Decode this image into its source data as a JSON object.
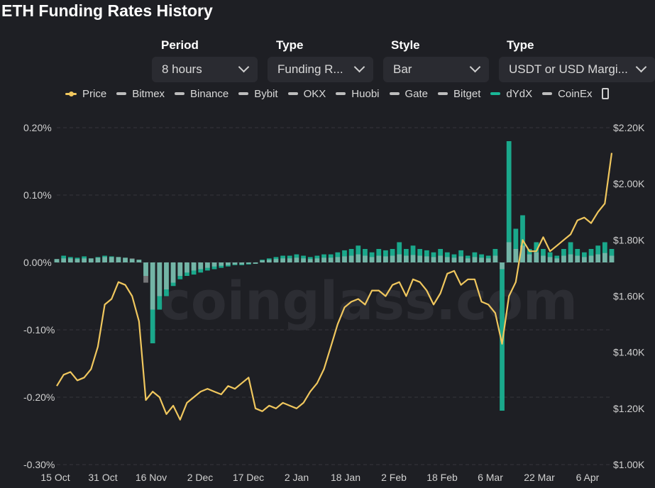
{
  "page": {
    "title": "ETH Funding Rates History"
  },
  "controls": [
    {
      "label": "Period",
      "value": "8 hours"
    },
    {
      "label": "Type",
      "value": "Funding R..."
    },
    {
      "label": "Style",
      "value": "Bar"
    },
    {
      "label": "Type",
      "value": "USDT or USD Margi..."
    }
  ],
  "legend": [
    {
      "name": "Price",
      "color": "#f0c75e"
    },
    {
      "name": "Bitmex",
      "color": "#bdbdbd"
    },
    {
      "name": "Binance",
      "color": "#bdbdbd"
    },
    {
      "name": "Bybit",
      "color": "#bdbdbd"
    },
    {
      "name": "OKX",
      "color": "#bdbdbd"
    },
    {
      "name": "Huobi",
      "color": "#bdbdbd"
    },
    {
      "name": "Gate",
      "color": "#bdbdbd"
    },
    {
      "name": "Bitget",
      "color": "#bdbdbd"
    },
    {
      "name": "dYdX",
      "color": "#19b797"
    },
    {
      "name": "CoinEx",
      "color": "#bdbdbd"
    }
  ],
  "watermark": "coinglass.com",
  "chart_data": {
    "type": "bar",
    "title": "ETH Funding Rates History",
    "grid": true,
    "legend_position": "top",
    "x_tick_labels": [
      "15 Oct",
      "31 Oct",
      "16 Nov",
      "2 Dec",
      "17 Dec",
      "2 Jan",
      "18 Jan",
      "2 Feb",
      "18 Feb",
      "6 Mar",
      "22 Mar",
      "6 Apr"
    ],
    "y_left_ticks": [
      "0.20%",
      "0.10%",
      "0.00%",
      "-0.10%",
      "-0.20%",
      "-0.30%"
    ],
    "y_left_range": [
      -0.3,
      0.2
    ],
    "y_right_ticks": [
      "$2.20K",
      "$2.00K",
      "$1.80K",
      "$1.60K",
      "$1.40K",
      "$1.20K",
      "$1.00K"
    ],
    "y_right_range": [
      1000,
      2200
    ],
    "series": [
      {
        "name": "Price",
        "type": "line",
        "axis": "right",
        "color": "#f0c75e",
        "points": [
          [
            0,
            1280
          ],
          [
            1,
            1320
          ],
          [
            2,
            1330
          ],
          [
            3,
            1300
          ],
          [
            4,
            1310
          ],
          [
            5,
            1340
          ],
          [
            6,
            1420
          ],
          [
            7,
            1570
          ],
          [
            8,
            1590
          ],
          [
            9,
            1650
          ],
          [
            10,
            1640
          ],
          [
            11,
            1600
          ],
          [
            12,
            1510
          ],
          [
            13,
            1230
          ],
          [
            14,
            1260
          ],
          [
            15,
            1240
          ],
          [
            16,
            1180
          ],
          [
            17,
            1210
          ],
          [
            18,
            1160
          ],
          [
            19,
            1220
          ],
          [
            20,
            1240
          ],
          [
            21,
            1260
          ],
          [
            22,
            1270
          ],
          [
            23,
            1260
          ],
          [
            24,
            1250
          ],
          [
            25,
            1280
          ],
          [
            26,
            1270
          ],
          [
            27,
            1290
          ],
          [
            28,
            1310
          ],
          [
            29,
            1200
          ],
          [
            30,
            1190
          ],
          [
            31,
            1210
          ],
          [
            32,
            1200
          ],
          [
            33,
            1220
          ],
          [
            34,
            1210
          ],
          [
            35,
            1200
          ],
          [
            36,
            1220
          ],
          [
            37,
            1260
          ],
          [
            38,
            1290
          ],
          [
            39,
            1340
          ],
          [
            40,
            1420
          ],
          [
            41,
            1500
          ],
          [
            42,
            1560
          ],
          [
            43,
            1580
          ],
          [
            44,
            1590
          ],
          [
            45,
            1570
          ],
          [
            46,
            1620
          ],
          [
            47,
            1620
          ],
          [
            48,
            1600
          ],
          [
            49,
            1640
          ],
          [
            50,
            1650
          ],
          [
            51,
            1600
          ],
          [
            52,
            1660
          ],
          [
            53,
            1650
          ],
          [
            54,
            1620
          ],
          [
            55,
            1570
          ],
          [
            56,
            1610
          ],
          [
            57,
            1680
          ],
          [
            58,
            1690
          ],
          [
            59,
            1640
          ],
          [
            60,
            1660
          ],
          [
            61,
            1660
          ],
          [
            62,
            1580
          ],
          [
            63,
            1570
          ],
          [
            64,
            1540
          ],
          [
            65,
            1430
          ],
          [
            66,
            1600
          ],
          [
            67,
            1650
          ],
          [
            68,
            1800
          ],
          [
            69,
            1760
          ],
          [
            70,
            1760
          ],
          [
            71,
            1810
          ],
          [
            72,
            1760
          ],
          [
            73,
            1780
          ],
          [
            74,
            1800
          ],
          [
            75,
            1820
          ],
          [
            76,
            1870
          ],
          [
            77,
            1880
          ],
          [
            78,
            1860
          ],
          [
            79,
            1900
          ],
          [
            80,
            1930
          ],
          [
            81,
            2110
          ]
        ]
      },
      {
        "name": "dYdX",
        "type": "bar",
        "axis": "left",
        "color": "#19b797",
        "points": [
          [
            0,
            0.005
          ],
          [
            1,
            0.01
          ],
          [
            2,
            0.008
          ],
          [
            3,
            0.007
          ],
          [
            4,
            0.009
          ],
          [
            5,
            0.006
          ],
          [
            6,
            0.008
          ],
          [
            7,
            0.01
          ],
          [
            8,
            0.009
          ],
          [
            9,
            0.008
          ],
          [
            10,
            0.007
          ],
          [
            11,
            0.005
          ],
          [
            12,
            0.004
          ],
          [
            13,
            -0.02
          ],
          [
            14,
            -0.12
          ],
          [
            15,
            -0.07
          ],
          [
            16,
            -0.05
          ],
          [
            17,
            -0.035
          ],
          [
            18,
            -0.025
          ],
          [
            19,
            -0.02
          ],
          [
            20,
            -0.018
          ],
          [
            21,
            -0.015
          ],
          [
            22,
            -0.012
          ],
          [
            23,
            -0.01
          ],
          [
            24,
            -0.008
          ],
          [
            25,
            -0.006
          ],
          [
            26,
            -0.004
          ],
          [
            27,
            -0.004
          ],
          [
            28,
            -0.003
          ],
          [
            29,
            -0.002
          ],
          [
            30,
            0.004
          ],
          [
            31,
            0.006
          ],
          [
            32,
            0.008
          ],
          [
            33,
            0.01
          ],
          [
            34,
            0.01
          ],
          [
            35,
            0.012
          ],
          [
            36,
            0.01
          ],
          [
            37,
            0.008
          ],
          [
            38,
            0.01
          ],
          [
            39,
            0.012
          ],
          [
            40,
            0.012
          ],
          [
            41,
            0.015
          ],
          [
            42,
            0.018
          ],
          [
            43,
            0.02
          ],
          [
            44,
            0.025
          ],
          [
            45,
            0.02
          ],
          [
            46,
            0.015
          ],
          [
            47,
            0.02
          ],
          [
            48,
            0.018
          ],
          [
            49,
            0.02
          ],
          [
            50,
            0.03
          ],
          [
            51,
            0.02
          ],
          [
            52,
            0.025
          ],
          [
            53,
            0.02
          ],
          [
            54,
            0.018
          ],
          [
            55,
            0.015
          ],
          [
            56,
            0.02
          ],
          [
            57,
            0.015
          ],
          [
            58,
            0.012
          ],
          [
            59,
            0.018
          ],
          [
            60,
            0.01
          ],
          [
            61,
            0.015
          ],
          [
            62,
            0.012
          ],
          [
            63,
            0.01
          ],
          [
            64,
            0.02
          ],
          [
            65,
            -0.22
          ],
          [
            66,
            0.18
          ],
          [
            67,
            0.05
          ],
          [
            68,
            0.07
          ],
          [
            69,
            0.02
          ],
          [
            70,
            0.03
          ],
          [
            71,
            0.02
          ],
          [
            72,
            0.015
          ],
          [
            73,
            0.01
          ],
          [
            74,
            0.02
          ],
          [
            75,
            0.03
          ],
          [
            76,
            0.02
          ],
          [
            77,
            0.015
          ],
          [
            78,
            0.02
          ],
          [
            79,
            0.025
          ],
          [
            80,
            0.03
          ],
          [
            81,
            0.02
          ]
        ]
      },
      {
        "name": "Binance",
        "type": "bar",
        "axis": "left",
        "color": "#bdbdbd",
        "points": [
          [
            0,
            0.005
          ],
          [
            1,
            0.006
          ],
          [
            2,
            0.006
          ],
          [
            3,
            0.005
          ],
          [
            4,
            0.006
          ],
          [
            5,
            0.006
          ],
          [
            6,
            0.007
          ],
          [
            7,
            0.008
          ],
          [
            8,
            0.008
          ],
          [
            9,
            0.008
          ],
          [
            10,
            0.007
          ],
          [
            11,
            0.006
          ],
          [
            12,
            0.004
          ],
          [
            13,
            -0.03
          ],
          [
            14,
            -0.07
          ],
          [
            15,
            -0.05
          ],
          [
            16,
            -0.04
          ],
          [
            17,
            -0.03
          ],
          [
            18,
            -0.02
          ],
          [
            19,
            -0.015
          ],
          [
            20,
            -0.012
          ],
          [
            21,
            -0.01
          ],
          [
            22,
            -0.008
          ],
          [
            23,
            -0.006
          ],
          [
            24,
            -0.005
          ],
          [
            25,
            -0.004
          ],
          [
            26,
            -0.003
          ],
          [
            27,
            -0.003
          ],
          [
            28,
            -0.002
          ],
          [
            29,
            -0.002
          ],
          [
            30,
            0.003
          ],
          [
            31,
            0.004
          ],
          [
            32,
            0.005
          ],
          [
            33,
            0.006
          ],
          [
            34,
            0.006
          ],
          [
            35,
            0.007
          ],
          [
            36,
            0.006
          ],
          [
            37,
            0.005
          ],
          [
            38,
            0.006
          ],
          [
            39,
            0.007
          ],
          [
            40,
            0.007
          ],
          [
            41,
            0.008
          ],
          [
            42,
            0.009
          ],
          [
            43,
            0.01
          ],
          [
            44,
            0.012
          ],
          [
            45,
            0.01
          ],
          [
            46,
            0.008
          ],
          [
            47,
            0.01
          ],
          [
            48,
            0.009
          ],
          [
            49,
            0.01
          ],
          [
            50,
            0.012
          ],
          [
            51,
            0.01
          ],
          [
            52,
            0.011
          ],
          [
            53,
            0.01
          ],
          [
            54,
            0.009
          ],
          [
            55,
            0.008
          ],
          [
            56,
            0.01
          ],
          [
            57,
            0.008
          ],
          [
            58,
            0.007
          ],
          [
            59,
            0.009
          ],
          [
            60,
            0.006
          ],
          [
            61,
            0.008
          ],
          [
            62,
            0.007
          ],
          [
            63,
            0.006
          ],
          [
            64,
            0.01
          ],
          [
            65,
            -0.01
          ],
          [
            66,
            0.03
          ],
          [
            67,
            0.02
          ],
          [
            68,
            0.025
          ],
          [
            69,
            0.012
          ],
          [
            70,
            0.015
          ],
          [
            71,
            0.01
          ],
          [
            72,
            0.008
          ],
          [
            73,
            0.006
          ],
          [
            74,
            0.01
          ],
          [
            75,
            0.012
          ],
          [
            76,
            0.01
          ],
          [
            77,
            0.008
          ],
          [
            78,
            0.01
          ],
          [
            79,
            0.012
          ],
          [
            80,
            0.014
          ],
          [
            81,
            0.01
          ]
        ]
      }
    ]
  }
}
